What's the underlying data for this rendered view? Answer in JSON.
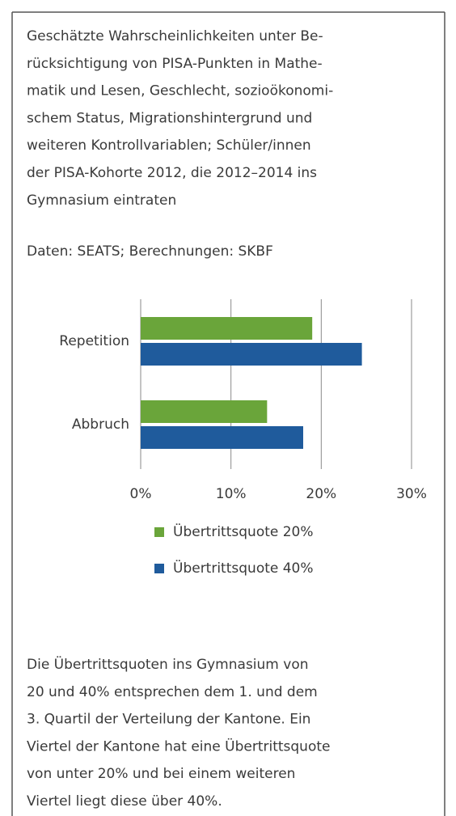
{
  "intro_lines": [
    "Geschätzte Wahrscheinlichkeiten unter Be-",
    "rücksichtigung von PISA-Punkten in Mathe-",
    "matik und Lesen, Geschlecht, sozioökonomi-",
    "schem Status, Migrationshintergrund und",
    "weiteren Kontrollvariablen; Schüler/innen",
    "der PISA-Kohorte 2012, die 2012–2014 ins",
    "Gymnasium eintraten"
  ],
  "source": "Daten: SEATS; Berechnungen: SKBF",
  "chart_data": {
    "type": "hbar",
    "categories": [
      "Repetition",
      "Abbruch"
    ],
    "series": [
      {
        "name": "Übertrittsquote 20%",
        "color": "#6aa53a",
        "values": [
          19,
          14
        ]
      },
      {
        "name": "Übertrittsquote 40%",
        "color": "#1f5b9c",
        "values": [
          24.5,
          18
        ]
      }
    ],
    "xlim": [
      0,
      30
    ],
    "xticks": [
      {
        "value": 0,
        "label": "0%"
      },
      {
        "value": 10,
        "label": "10%"
      },
      {
        "value": 20,
        "label": "20%"
      },
      {
        "value": 30,
        "label": "30%"
      }
    ],
    "grid": true
  },
  "note_lines": [
    "Die Übertrittsquoten ins Gymnasium von",
    "20 und 40% entsprechen dem 1. und dem",
    "3. Quartil der Verteilung der Kantone. Ein",
    "Viertel der Kantone hat eine Übertrittsquote",
    "von unter 20% und bei einem weiteren",
    "Viertel liegt diese über 40%."
  ]
}
